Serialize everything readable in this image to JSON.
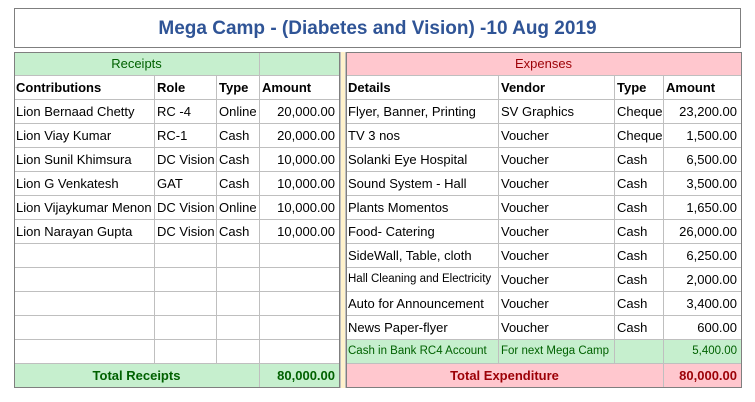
{
  "title": "Mega Camp - (Diabetes and Vision) -10 Aug 2019",
  "receipts": {
    "section_label": "Receipts",
    "headers": [
      "Contributions",
      "Role",
      "Type",
      "Amount"
    ],
    "rows": [
      [
        "Lion Bernaad Chetty",
        "RC -4",
        "Online",
        "20,000.00"
      ],
      [
        "Lion Viay Kumar",
        "RC-1",
        "Cash",
        "20,000.00"
      ],
      [
        "Lion Sunil Khimsura",
        "DC Vision",
        "Cash",
        "10,000.00"
      ],
      [
        "Lion G Venkatesh",
        "GAT",
        "Cash",
        "10,000.00"
      ],
      [
        "Lion Vijaykumar Menon",
        "DC Vision",
        "Online",
        "10,000.00"
      ],
      [
        "Lion Narayan Gupta",
        "DC Vision",
        "Cash",
        "10,000.00"
      ]
    ],
    "total_label": "Total Receipts",
    "total_value": "80,000.00"
  },
  "expenses": {
    "section_label": "Expenses",
    "headers": [
      "Details",
      "Vendor",
      "Type",
      "Amount"
    ],
    "rows": [
      [
        "Flyer, Banner, Printing",
        "SV Graphics",
        "Cheque",
        "23,200.00"
      ],
      [
        "TV 3 nos",
        "Voucher",
        "Cheque",
        "1,500.00"
      ],
      [
        "Solanki Eye Hospital",
        "Voucher",
        "Cash",
        "6,500.00"
      ],
      [
        "Sound System - Hall",
        "Voucher",
        "Cash",
        "3,500.00"
      ],
      [
        "Plants Momentos",
        "Voucher",
        "Cash",
        "1,650.00"
      ],
      [
        "Food- Catering",
        "Voucher",
        "Cash",
        "26,000.00"
      ],
      [
        "SideWall, Table, cloth",
        "Voucher",
        "Cash",
        "6,250.00"
      ],
      [
        "Hall Cleaning and Electricity",
        "Voucher",
        "Cash",
        "2,000.00"
      ],
      [
        "Auto for Announcement",
        "Voucher",
        "Cash",
        "3,400.00"
      ],
      [
        "News Paper-flyer",
        "Voucher",
        "Cash",
        "600.00"
      ]
    ],
    "bank_row": [
      "Cash in Bank RC4 Account",
      "For next Mega Camp",
      "",
      "5,400.00"
    ],
    "total_label": "Total Expenditure",
    "total_value": "80,000.00"
  },
  "colors": {
    "title": "#2f5496",
    "receipts_fill": "#c6efce",
    "expenses_fill": "#ffc7ce",
    "separator": "#fff2cc"
  }
}
